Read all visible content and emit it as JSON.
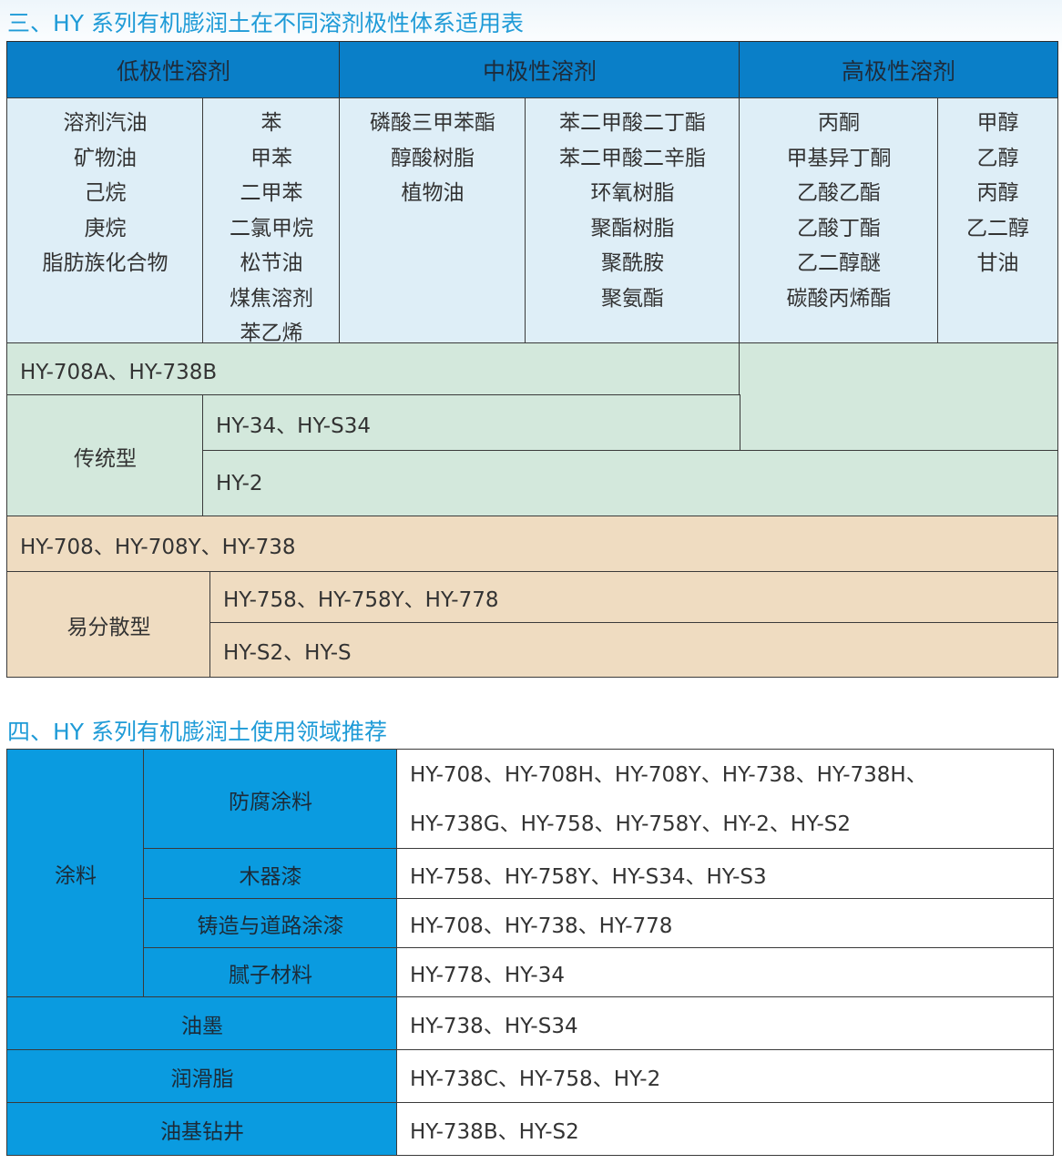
{
  "section3": {
    "title": "三、HY 系列有机膨润土在不同溶剂极性体系适用表",
    "headers": [
      "低极性溶剂",
      "中极性溶剂",
      "高极性溶剂"
    ],
    "solvents": [
      [
        "溶剂汽油",
        "矿物油",
        "己烷",
        "庚烷",
        "脂肪族化合物"
      ],
      [
        "苯",
        "甲苯",
        "二甲苯",
        "二氯甲烷",
        "松节油",
        "煤焦溶剂",
        "苯乙烯"
      ],
      [
        "磷酸三甲苯酯",
        "醇酸树脂",
        "植物油"
      ],
      [
        "苯二甲酸二丁酯",
        "苯二甲酸二辛脂",
        "环氧树脂",
        "聚酯树脂",
        "聚酰胺",
        "聚氨酯"
      ],
      [
        "丙酮",
        "甲基异丁酮",
        "乙酸乙酯",
        "乙酸丁酯",
        "乙二醇醚",
        "碳酸丙烯酯"
      ],
      [
        "甲醇",
        "乙醇",
        "丙醇",
        "乙二醇",
        "甘油"
      ]
    ],
    "rows": {
      "r1": "HY-708A、HY-738B",
      "traditional": "传统型",
      "r2": "HY-34、HY-S34",
      "r3": "HY-2",
      "r4": "HY-708、HY-708Y、HY-738",
      "easy": "易分散型",
      "r5": "HY-758、HY-758Y、HY-778",
      "r6": "HY-S2、HY-S"
    },
    "colors": {
      "header": "#0a7fc8",
      "solvent_bg": "#deeef7",
      "traditional_bg": "#d3e8dc",
      "easy_bg": "#efdcc1"
    }
  },
  "section4": {
    "title": "四、HY 系列有机膨润土使用领域推荐",
    "coating": "涂料",
    "rows": [
      {
        "label": "防腐涂料",
        "lines": [
          "HY-708、HY-708H、HY-708Y、HY-738、HY-738H、",
          "HY-738G、HY-758、HY-758Y、HY-2、HY-S2"
        ]
      },
      {
        "label": "木器漆",
        "value": "HY-758、HY-758Y、HY-S34、HY-S3"
      },
      {
        "label": "铸造与道路涂漆",
        "value": "HY-708、HY-738、HY-778"
      },
      {
        "label": "腻子材料",
        "value": "HY-778、HY-34"
      },
      {
        "label": "油墨",
        "value": "HY-738、HY-S34"
      },
      {
        "label": "润滑脂",
        "value": "HY-738C、HY-758、HY-2"
      },
      {
        "label": "油基钻井",
        "value": "HY-738B、HY-S2"
      }
    ],
    "colors": {
      "label_bg": "#0a9be0"
    }
  }
}
